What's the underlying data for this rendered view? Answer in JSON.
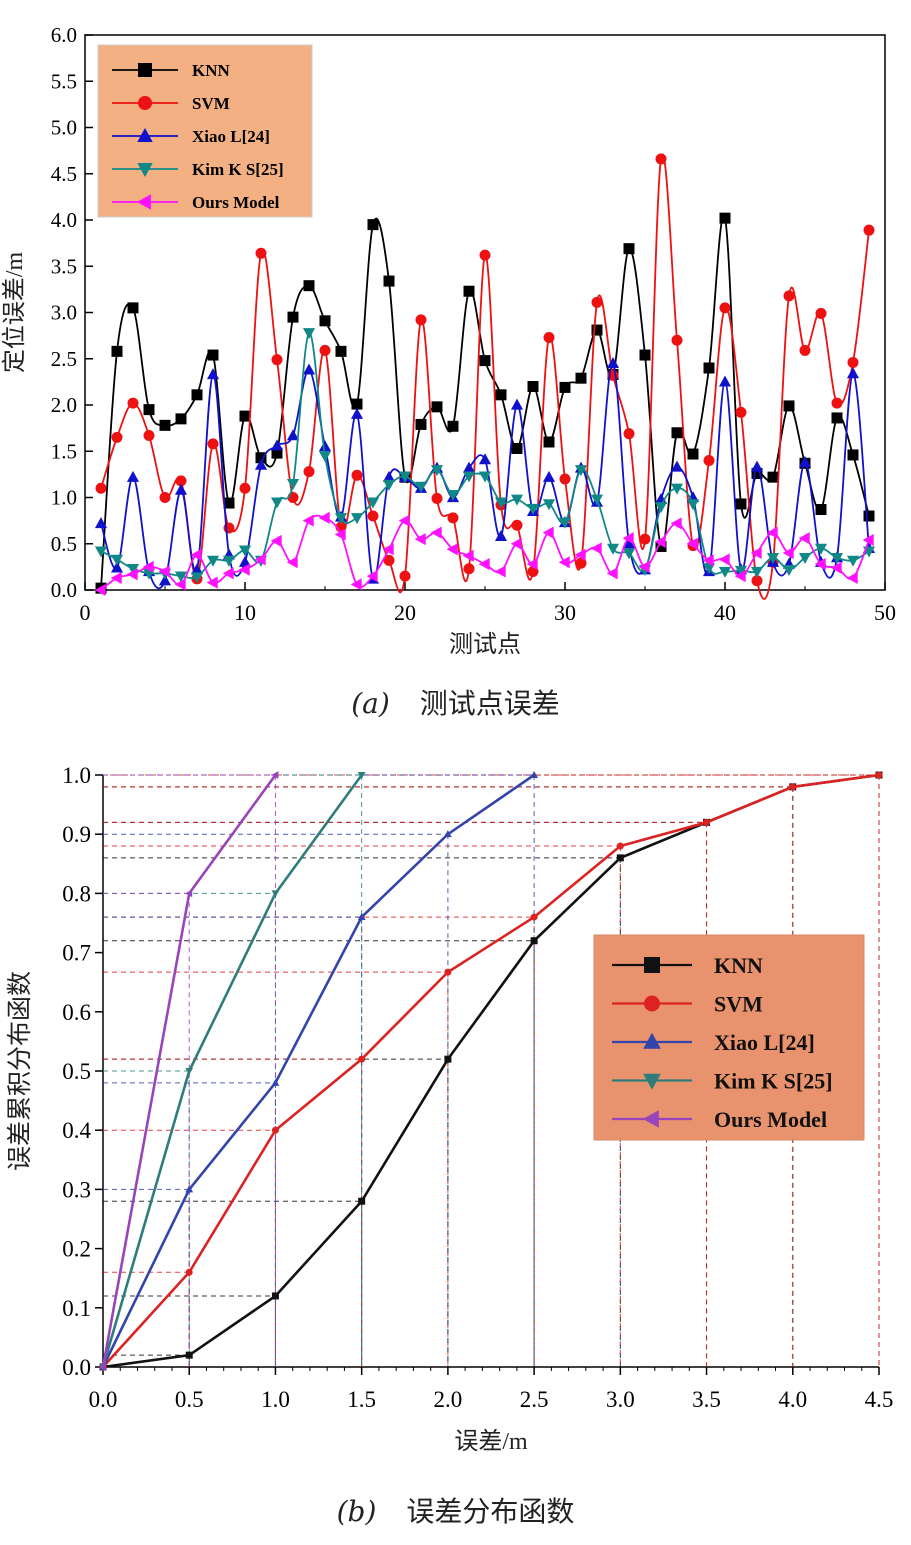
{
  "chart_data": [
    {
      "type": "line",
      "caption_label": "(a)",
      "caption_text": "测试点误差",
      "xlabel": "测试点",
      "ylabel": "定位误差/m",
      "xlim": [
        0,
        50
      ],
      "ylim": [
        0,
        6.0
      ],
      "xticks": [
        0,
        10,
        20,
        30,
        40,
        50
      ],
      "yticks": [
        "0.0",
        "0.5",
        "1.0",
        "1.5",
        "2.0",
        "2.5",
        "3.0",
        "3.5",
        "4.0",
        "4.5",
        "5.0",
        "5.5",
        "6.0"
      ],
      "legend_position": "top-left",
      "legend_bg": "#f3b183",
      "series": [
        {
          "name": "KNN",
          "color": "#000000",
          "marker": "square",
          "x": [
            1,
            2,
            3,
            4,
            5,
            6,
            7,
            8,
            9,
            10,
            11,
            12,
            13,
            14,
            15,
            16,
            17,
            18,
            19,
            20,
            21,
            22,
            23,
            24,
            25,
            26,
            27,
            28,
            29,
            30,
            31,
            32,
            33,
            34,
            35,
            36,
            37,
            38,
            39,
            40,
            41,
            42,
            43,
            44,
            45,
            46,
            47,
            48,
            49
          ],
          "y": [
            0.02,
            2.58,
            3.05,
            1.95,
            1.78,
            1.85,
            2.11,
            2.54,
            0.94,
            1.88,
            1.43,
            1.48,
            2.95,
            3.29,
            2.91,
            2.58,
            2.01,
            3.95,
            3.34,
            1.22,
            1.79,
            1.98,
            1.77,
            3.23,
            2.48,
            2.11,
            1.53,
            2.2,
            1.6,
            2.19,
            2.29,
            2.81,
            2.33,
            3.69,
            2.54,
            0.47,
            1.7,
            1.47,
            2.4,
            4.02,
            0.93,
            1.26,
            1.22,
            1.99,
            1.37,
            0.87,
            1.86,
            1.46,
            0.8
          ]
        },
        {
          "name": "SVM",
          "color": "#ee1111",
          "marker": "circle",
          "x": [
            1,
            2,
            3,
            4,
            5,
            6,
            7,
            8,
            9,
            10,
            11,
            12,
            13,
            14,
            15,
            16,
            17,
            18,
            19,
            20,
            21,
            22,
            23,
            24,
            25,
            26,
            27,
            28,
            29,
            30,
            31,
            32,
            33,
            34,
            35,
            36,
            37,
            38,
            39,
            40,
            41,
            42,
            43,
            44,
            45,
            46,
            47,
            48,
            49
          ],
          "y": [
            1.1,
            1.65,
            2.02,
            1.67,
            1.0,
            1.18,
            0.12,
            1.58,
            0.67,
            1.1,
            3.64,
            2.49,
            1.0,
            1.28,
            2.59,
            0.68,
            1.24,
            0.8,
            0.32,
            0.15,
            2.92,
            0.99,
            0.78,
            0.23,
            3.62,
            0.92,
            0.7,
            0.2,
            2.73,
            1.2,
            0.29,
            3.11,
            2.32,
            1.69,
            0.55,
            4.66,
            2.7,
            0.48,
            1.4,
            3.05,
            1.92,
            0.1,
            0.3,
            3.18,
            2.59,
            2.99,
            2.02,
            2.46,
            3.89
          ]
        },
        {
          "name": "Xiao L[24]",
          "color": "#1111cc",
          "marker": "triangle-up",
          "x": [
            1,
            2,
            3,
            4,
            5,
            6,
            7,
            8,
            9,
            10,
            11,
            12,
            13,
            14,
            15,
            16,
            17,
            18,
            19,
            20,
            21,
            22,
            23,
            24,
            25,
            26,
            27,
            28,
            29,
            30,
            31,
            32,
            33,
            34,
            35,
            36,
            37,
            38,
            39,
            40,
            41,
            42,
            43,
            44,
            45,
            46,
            47,
            48,
            49
          ],
          "y": [
            0.72,
            0.24,
            1.22,
            0.2,
            0.1,
            1.08,
            0.22,
            2.33,
            0.38,
            0.3,
            1.35,
            1.56,
            1.67,
            2.38,
            1.55,
            0.79,
            1.9,
            0.12,
            1.22,
            1.22,
            1.1,
            1.32,
            1.0,
            1.32,
            1.41,
            0.58,
            2.0,
            0.85,
            1.22,
            0.73,
            1.32,
            0.95,
            2.45,
            0.5,
            0.22,
            0.98,
            1.33,
            1.0,
            0.2,
            2.25,
            0.22,
            1.33,
            0.3,
            0.28,
            1.38,
            0.3,
            0.35,
            2.34,
            0.45
          ]
        },
        {
          "name": "Kim K S[25]",
          "color": "#118888",
          "marker": "triangle-down",
          "x": [
            1,
            2,
            3,
            4,
            5,
            6,
            7,
            8,
            9,
            10,
            11,
            12,
            13,
            14,
            15,
            16,
            17,
            18,
            19,
            20,
            21,
            22,
            23,
            24,
            25,
            26,
            27,
            28,
            29,
            30,
            31,
            32,
            33,
            34,
            35,
            36,
            37,
            38,
            39,
            40,
            41,
            42,
            43,
            44,
            45,
            46,
            47,
            48,
            49
          ],
          "y": [
            0.42,
            0.33,
            0.23,
            0.18,
            0.18,
            0.15,
            0.14,
            0.32,
            0.32,
            0.43,
            0.32,
            0.95,
            1.15,
            2.78,
            1.45,
            0.78,
            0.78,
            0.95,
            1.14,
            1.23,
            1.12,
            1.3,
            1.03,
            1.23,
            1.23,
            0.95,
            0.98,
            0.88,
            0.93,
            0.73,
            1.3,
            0.98,
            0.45,
            0.4,
            0.22,
            0.9,
            1.1,
            0.93,
            0.24,
            0.2,
            0.21,
            0.2,
            0.35,
            0.22,
            0.35,
            0.45,
            0.35,
            0.32,
            0.42
          ]
        },
        {
          "name": "Ours Model",
          "color": "#ff11ff",
          "marker": "triangle-left",
          "x": [
            1,
            2,
            3,
            4,
            5,
            6,
            7,
            8,
            9,
            10,
            11,
            12,
            13,
            14,
            15,
            16,
            17,
            18,
            19,
            20,
            21,
            22,
            23,
            24,
            25,
            26,
            27,
            28,
            29,
            30,
            31,
            32,
            33,
            34,
            35,
            36,
            37,
            38,
            39,
            40,
            41,
            42,
            43,
            44,
            45,
            46,
            47,
            48,
            49
          ],
          "y": [
            0.0,
            0.13,
            0.17,
            0.25,
            0.2,
            0.06,
            0.38,
            0.08,
            0.18,
            0.22,
            0.33,
            0.53,
            0.3,
            0.75,
            0.78,
            0.6,
            0.06,
            0.15,
            0.44,
            0.75,
            0.55,
            0.62,
            0.44,
            0.37,
            0.28,
            0.2,
            0.5,
            0.28,
            0.62,
            0.3,
            0.38,
            0.45,
            0.18,
            0.56,
            0.25,
            0.52,
            0.72,
            0.5,
            0.32,
            0.33,
            0.15,
            0.4,
            0.62,
            0.4,
            0.56,
            0.28,
            0.24,
            0.13,
            0.54
          ]
        }
      ]
    },
    {
      "type": "line",
      "caption_label": "(b)",
      "caption_text": "误差分布函数",
      "xlabel": "误差/m",
      "ylabel": "误差累积分布函数",
      "xlim": [
        0,
        4.5
      ],
      "ylim": [
        0,
        1.0
      ],
      "xticks": [
        "0.0",
        "0.5",
        "1.0",
        "1.5",
        "2.0",
        "2.5",
        "3.0",
        "3.5",
        "4.0",
        "4.5"
      ],
      "yticks": [
        "0.0",
        "0.1",
        "0.2",
        "0.3",
        "0.4",
        "0.5",
        "0.6",
        "0.7",
        "0.8",
        "0.9",
        "1.0"
      ],
      "legend_position": "right",
      "legend_bg": "#e9926e",
      "series": [
        {
          "name": "KNN",
          "color": "#111111",
          "marker": "square",
          "x": [
            0,
            0.5,
            1.0,
            1.5,
            2.0,
            2.5,
            3.0,
            3.5,
            4.0,
            4.5
          ],
          "y": [
            0,
            0.02,
            0.12,
            0.28,
            0.52,
            0.72,
            0.86,
            0.92,
            0.98,
            1.0
          ]
        },
        {
          "name": "SVM",
          "color": "#dd2222",
          "marker": "circle",
          "x": [
            0,
            0.5,
            1.0,
            1.5,
            2.0,
            2.5,
            3.0,
            3.5,
            4.0,
            4.5
          ],
          "y": [
            0,
            0.16,
            0.4,
            0.52,
            0.667,
            0.76,
            0.88,
            0.92,
            0.98,
            1.0
          ]
        },
        {
          "name": "Xiao L[24]",
          "color": "#3344aa",
          "marker": "triangle-up",
          "x": [
            0,
            0.5,
            1.0,
            1.5,
            2.0,
            2.5
          ],
          "y": [
            0,
            0.3,
            0.48,
            0.76,
            0.9,
            1.0
          ]
        },
        {
          "name": "Kim K S[25]",
          "color": "#2e7d7b",
          "marker": "triangle-down",
          "x": [
            0,
            0.5,
            1.0,
            1.5
          ],
          "y": [
            0,
            0.5,
            0.8,
            1.0
          ]
        },
        {
          "name": "Ours Model",
          "color": "#9944bb",
          "marker": "triangle-left",
          "x": [
            0,
            0.5,
            1.0
          ],
          "y": [
            0,
            0.8,
            1.0
          ]
        }
      ]
    }
  ]
}
